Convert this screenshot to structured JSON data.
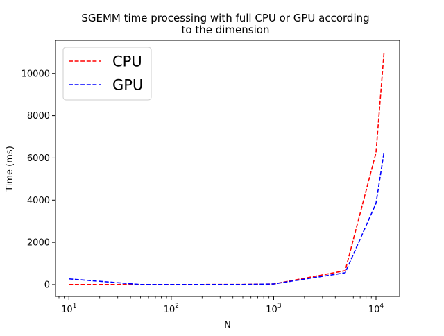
{
  "chart_data": {
    "type": "line",
    "title": "SGEMM time processing with full CPU or GPU according\nto the dimension",
    "xlabel": "N",
    "ylabel": "Time (ms)",
    "x_scale": "log",
    "xlim": [
      7.4,
      17000
    ],
    "ylim": [
      -560,
      11570
    ],
    "x_ticks": [
      {
        "value": 10,
        "base": "10",
        "exp": "1"
      },
      {
        "value": 100,
        "base": "10",
        "exp": "2"
      },
      {
        "value": 1000,
        "base": "10",
        "exp": "3"
      },
      {
        "value": 10000,
        "base": "10",
        "exp": "4"
      }
    ],
    "y_ticks": [
      0,
      2000,
      4000,
      6000,
      8000,
      10000
    ],
    "grid": false,
    "legend_position": "top-left",
    "series": [
      {
        "name": "CPU",
        "color": "#ff0000",
        "line_style": "dashed",
        "x": [
          10,
          50,
          100,
          500,
          1000,
          5000,
          10000,
          12000
        ],
        "y": [
          5,
          5,
          5,
          10,
          30,
          660,
          6250,
          11050
        ]
      },
      {
        "name": "GPU",
        "color": "#0000ff",
        "line_style": "dashed",
        "x": [
          10,
          50,
          100,
          500,
          1000,
          5000,
          10000,
          12000
        ],
        "y": [
          270,
          5,
          5,
          5,
          30,
          560,
          3850,
          6300
        ]
      }
    ]
  }
}
